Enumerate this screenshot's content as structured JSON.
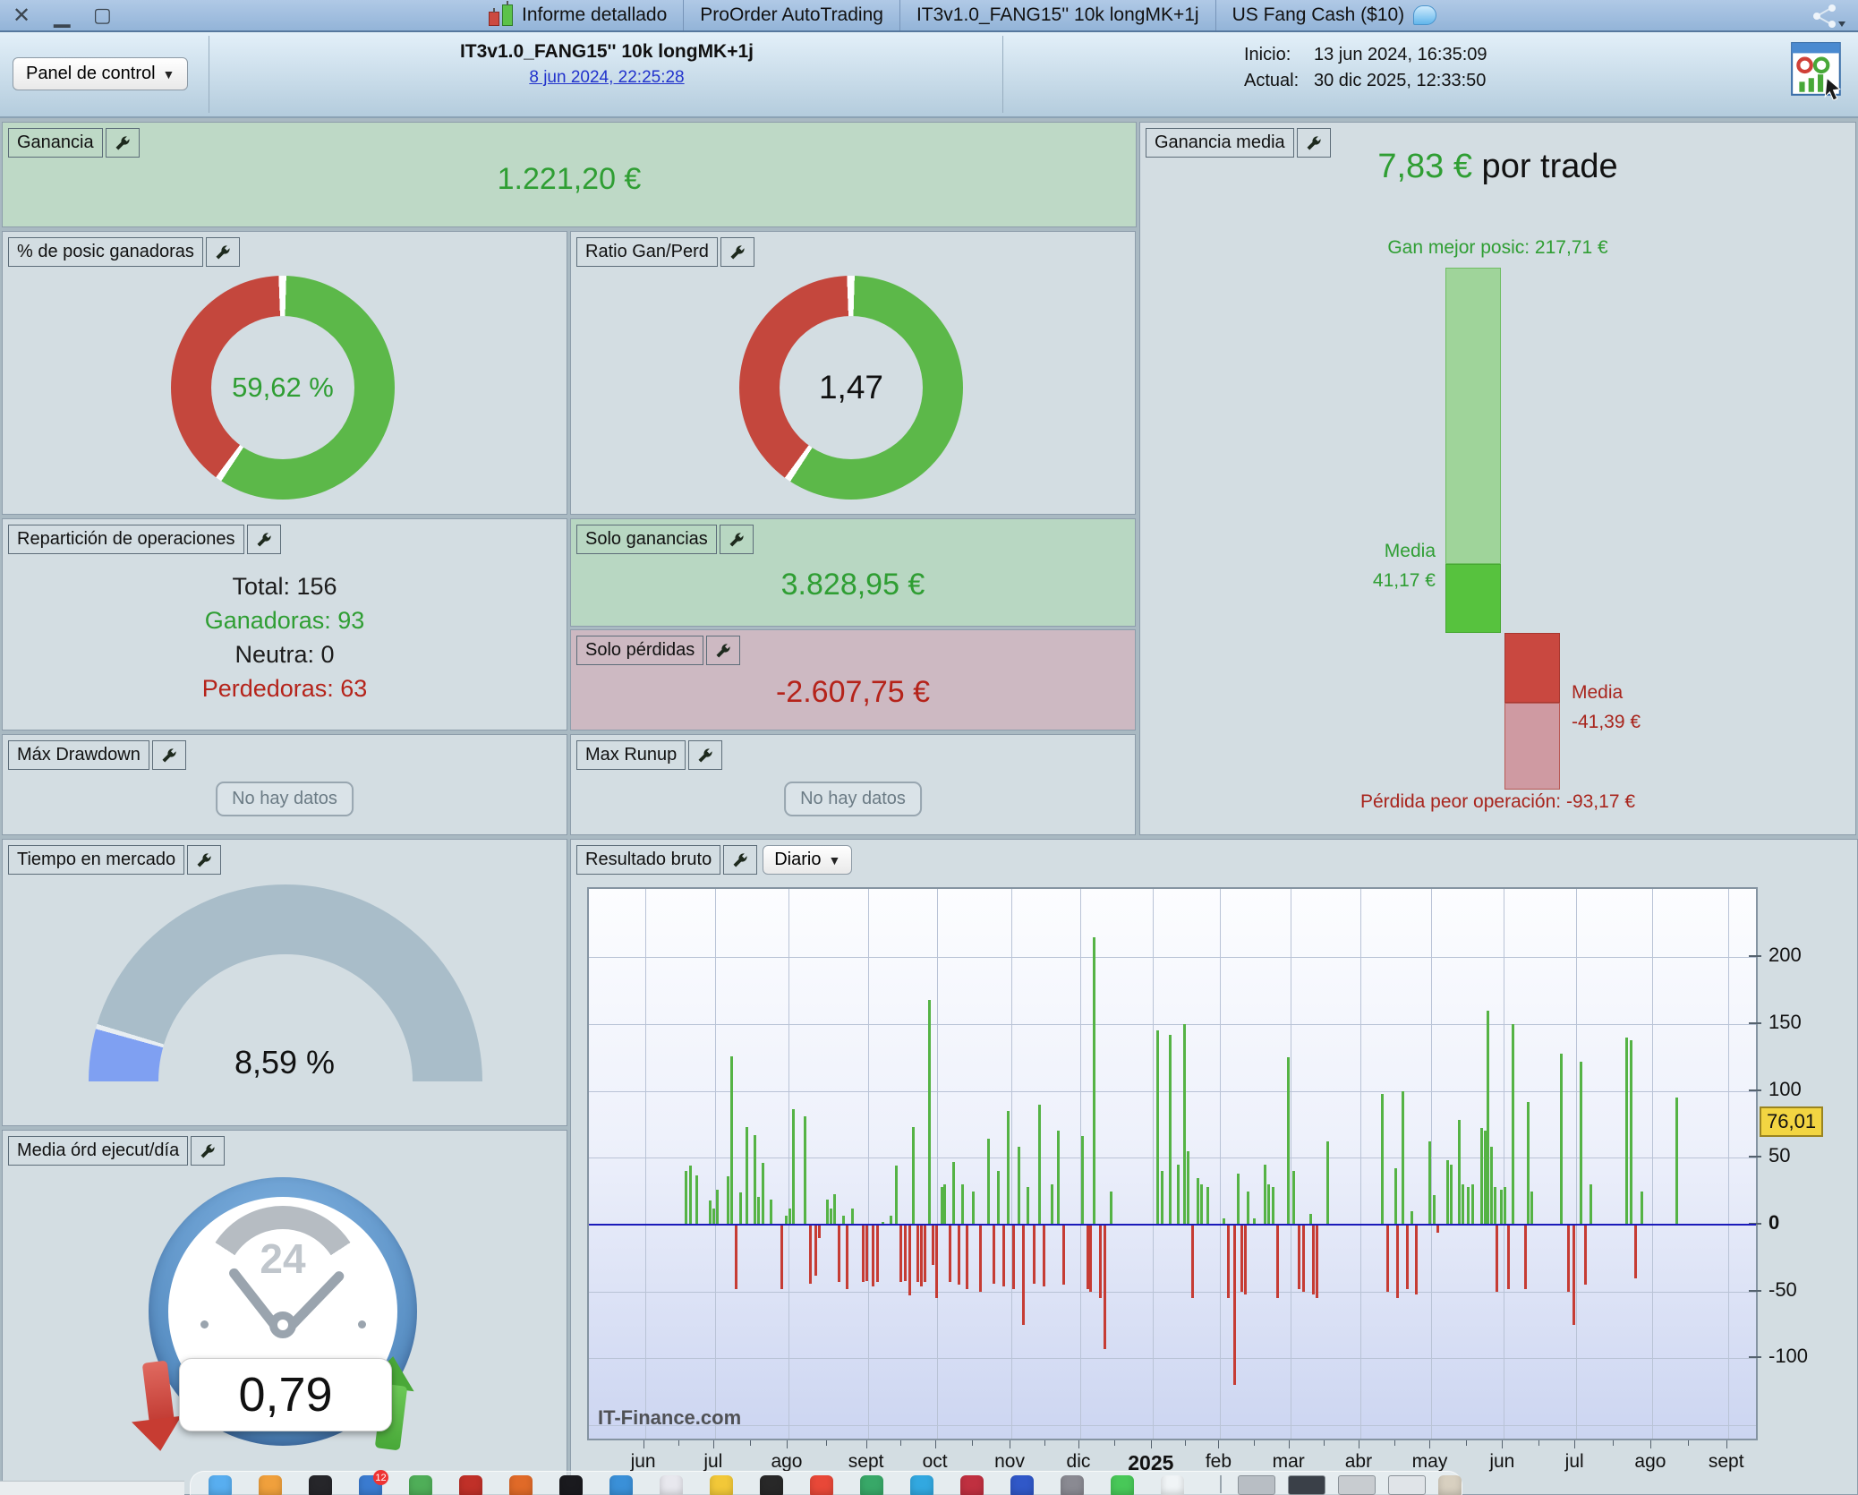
{
  "window": {
    "tabs": [
      "Informe detallado",
      "ProOrder AutoTrading",
      "IT3v1.0_FANG15'' 10k longMK+1j",
      "US Fang Cash ($10)"
    ]
  },
  "toolbar": {
    "panel_button": "Panel de control",
    "strategy_title": "IT3v1.0_FANG15'' 10k longMK+1j",
    "strategy_date_link": "8 jun 2024, 22:25:28",
    "inicio_label": "Inicio:",
    "inicio_value": "13 jun 2024, 16:35:09",
    "actual_label": "Actual:",
    "actual_value": "30 dic 2025, 12:33:50"
  },
  "panels": {
    "ganancia": {
      "label": "Ganancia",
      "value": "1.221,20 €"
    },
    "ganancia_media": {
      "label": "Ganancia media",
      "value": "7,83 €",
      "suffix": " por trade",
      "best_label": "Gan mejor posic: 217,71 €",
      "media_win_label": "Media",
      "media_win_value": "41,17 €",
      "media_loss_label": "Media",
      "media_loss_value": "-41,39 €",
      "worst_label": "Pérdida peor operación: -93,17 €"
    },
    "pct_ganadoras": {
      "label": "% de posic ganadoras",
      "value": "59,62 %"
    },
    "ratio": {
      "label": "Ratio Gan/Perd",
      "value": "1,47"
    },
    "reparticion": {
      "label": "Repartición de operaciones",
      "rows": [
        {
          "text": "Total: 156",
          "color": "#1c1c1c"
        },
        {
          "text": "Ganadoras: 93",
          "color": "#2f9e33"
        },
        {
          "text": "Neutra: 0",
          "color": "#1c1c1c"
        },
        {
          "text": "Perdedoras: 63",
          "color": "#b5231a"
        }
      ]
    },
    "solo_ganancias": {
      "label": "Solo ganancias",
      "value": "3.828,95 €"
    },
    "solo_perdidas": {
      "label": "Solo pérdidas",
      "value": "-2.607,75 €"
    },
    "drawdown": {
      "label": "Máx Drawdown",
      "empty": "No hay datos"
    },
    "runup": {
      "label": "Max Runup",
      "empty": "No hay datos"
    },
    "tiempo": {
      "label": "Tiempo en mercado",
      "value": "8,59 %"
    },
    "media_ord": {
      "label": "Media órd ejecut/día",
      "value": "0,79",
      "clock_text": "24"
    },
    "resultado": {
      "label": "Resultado bruto",
      "period_button": "Diario",
      "watermark": "IT-Finance.com",
      "current_value": "76,01"
    }
  },
  "colors": {
    "win_green": "#5cb849",
    "loss_red": "#c4473d",
    "value_green": "#2f9e33",
    "value_red": "#b5231a",
    "gauge_blue": "#7fa0f2",
    "gauge_gray": "#a9bdc9",
    "bar_pos": "#55b345",
    "bar_neg": "#c63c34",
    "zero_line": "#1b1bba",
    "highlight_yellow": "#f2d542"
  },
  "chart_data": [
    {
      "type": "pie",
      "name": "pct_posiciones_ganadoras",
      "labels": [
        "Ganadoras",
        "Perdedoras"
      ],
      "values": [
        59.62,
        40.38
      ],
      "center_text": "59,62 %"
    },
    {
      "type": "pie",
      "name": "ratio_gan_perd",
      "labels": [
        "Gan",
        "Perd"
      ],
      "values": [
        59.5,
        40.5
      ],
      "center_text": "1,47"
    },
    {
      "type": "bar",
      "name": "ganancia_media_rangos",
      "best": 217.71,
      "avg_win": 41.17,
      "avg_loss": -41.39,
      "worst": -93.17,
      "title": "7,83 € por trade"
    },
    {
      "type": "area",
      "name": "tiempo_en_mercado_gauge",
      "value": 8.59,
      "range": [
        0,
        100
      ]
    },
    {
      "type": "bar",
      "name": "resultado_bruto_diario",
      "title": "Resultado bruto (Diario)",
      "x_months": [
        [
          "jun",
          0.048
        ],
        [
          "jul",
          0.108
        ],
        [
          "ago",
          0.171
        ],
        [
          "sept",
          0.239
        ],
        [
          "oct",
          0.298
        ],
        [
          "nov",
          0.362
        ],
        [
          "dic",
          0.421
        ],
        [
          "2025",
          0.483
        ],
        [
          "feb",
          0.541
        ],
        [
          "mar",
          0.601
        ],
        [
          "abr",
          0.661
        ],
        [
          "may",
          0.722
        ],
        [
          "jun",
          0.784
        ],
        [
          "jul",
          0.846
        ],
        [
          "ago",
          0.911
        ],
        [
          "sept",
          0.976
        ]
      ],
      "bold_month": "2025",
      "y_ticks": [
        200,
        150,
        100,
        50,
        0,
        -50,
        -100
      ],
      "ylim": [
        -160,
        251
      ],
      "grid": true,
      "legend_position": "none",
      "current_value": 76.01,
      "bars": [
        [
          0.082,
          40
        ],
        [
          0.086,
          44
        ],
        [
          0.091,
          37
        ],
        [
          0.103,
          18
        ],
        [
          0.106,
          12
        ],
        [
          0.109,
          26
        ],
        [
          0.118,
          36
        ],
        [
          0.121,
          126
        ],
        [
          0.125,
          -48
        ],
        [
          0.129,
          24
        ],
        [
          0.134,
          73
        ],
        [
          0.141,
          67
        ],
        [
          0.144,
          21
        ],
        [
          0.148,
          46
        ],
        [
          0.155,
          19
        ],
        [
          0.164,
          -48
        ],
        [
          0.168,
          7
        ],
        [
          0.171,
          12
        ],
        [
          0.174,
          86
        ],
        [
          0.184,
          81
        ],
        [
          0.189,
          -44
        ],
        [
          0.193,
          -38
        ],
        [
          0.196,
          -10
        ],
        [
          0.203,
          19
        ],
        [
          0.206,
          12
        ],
        [
          0.209,
          23
        ],
        [
          0.213,
          -43
        ],
        [
          0.217,
          7
        ],
        [
          0.22,
          -48
        ],
        [
          0.225,
          12
        ],
        [
          0.234,
          -43
        ],
        [
          0.237,
          -42
        ],
        [
          0.242,
          -46
        ],
        [
          0.246,
          -43
        ],
        [
          0.251,
          2
        ],
        [
          0.258,
          7
        ],
        [
          0.262,
          44
        ],
        [
          0.266,
          -43
        ],
        [
          0.27,
          -42
        ],
        [
          0.274,
          -53
        ],
        [
          0.277,
          73
        ],
        [
          0.281,
          -43
        ],
        [
          0.284,
          -46
        ],
        [
          0.287,
          -43
        ],
        [
          0.291,
          168
        ],
        [
          0.294,
          -30
        ],
        [
          0.297,
          -55
        ],
        [
          0.301,
          28
        ],
        [
          0.304,
          30
        ],
        [
          0.308,
          -43
        ],
        [
          0.311,
          47
        ],
        [
          0.316,
          -45
        ],
        [
          0.319,
          30
        ],
        [
          0.323,
          -48
        ],
        [
          0.328,
          25
        ],
        [
          0.334,
          -50
        ],
        [
          0.341,
          64
        ],
        [
          0.346,
          -44
        ],
        [
          0.35,
          40
        ],
        [
          0.354,
          -46
        ],
        [
          0.358,
          85
        ],
        [
          0.363,
          -48
        ],
        [
          0.367,
          58
        ],
        [
          0.371,
          -75
        ],
        [
          0.375,
          28
        ],
        [
          0.38,
          -44
        ],
        [
          0.385,
          90
        ],
        [
          0.389,
          -46
        ],
        [
          0.396,
          30
        ],
        [
          0.401,
          70
        ],
        [
          0.406,
          -45
        ],
        [
          0.422,
          66
        ],
        [
          0.426,
          -48
        ],
        [
          0.429,
          -50
        ],
        [
          0.432,
          215
        ],
        [
          0.437,
          -55
        ],
        [
          0.441,
          -93
        ],
        [
          0.446,
          25
        ],
        [
          0.486,
          145
        ],
        [
          0.49,
          40
        ],
        [
          0.497,
          142
        ],
        [
          0.504,
          45
        ],
        [
          0.509,
          150
        ],
        [
          0.512,
          55
        ],
        [
          0.516,
          -55
        ],
        [
          0.521,
          35
        ],
        [
          0.524,
          30
        ],
        [
          0.529,
          28
        ],
        [
          0.543,
          5
        ],
        [
          0.547,
          -55
        ],
        [
          0.552,
          -120
        ],
        [
          0.555,
          38
        ],
        [
          0.558,
          -50
        ],
        [
          0.561,
          -52
        ],
        [
          0.564,
          25
        ],
        [
          0.569,
          5
        ],
        [
          0.578,
          45
        ],
        [
          0.581,
          30
        ],
        [
          0.585,
          28
        ],
        [
          0.589,
          -55
        ],
        [
          0.598,
          125
        ],
        [
          0.603,
          40
        ],
        [
          0.607,
          -48
        ],
        [
          0.611,
          -50
        ],
        [
          0.617,
          8
        ],
        [
          0.62,
          -52
        ],
        [
          0.623,
          -55
        ],
        [
          0.632,
          62
        ],
        [
          0.679,
          98
        ],
        [
          0.683,
          -50
        ],
        [
          0.69,
          42
        ],
        [
          0.692,
          -55
        ],
        [
          0.696,
          100
        ],
        [
          0.7,
          -48
        ],
        [
          0.704,
          10
        ],
        [
          0.708,
          -52
        ],
        [
          0.719,
          62
        ],
        [
          0.723,
          22
        ],
        [
          0.726,
          -6
        ],
        [
          0.735,
          48
        ],
        [
          0.738,
          45
        ],
        [
          0.745,
          78
        ],
        [
          0.748,
          30
        ],
        [
          0.752,
          28
        ],
        [
          0.756,
          30
        ],
        [
          0.764,
          72
        ],
        [
          0.767,
          70
        ],
        [
          0.769,
          160
        ],
        [
          0.772,
          58
        ],
        [
          0.775,
          28
        ],
        [
          0.777,
          -50
        ],
        [
          0.781,
          26
        ],
        [
          0.784,
          28
        ],
        [
          0.787,
          -48
        ],
        [
          0.791,
          150
        ],
        [
          0.801,
          -48
        ],
        [
          0.804,
          92
        ],
        [
          0.807,
          25
        ],
        [
          0.832,
          128
        ],
        [
          0.838,
          -50
        ],
        [
          0.843,
          -75
        ],
        [
          0.849,
          122
        ],
        [
          0.853,
          -45
        ],
        [
          0.857,
          30
        ],
        [
          0.888,
          140
        ],
        [
          0.892,
          138
        ],
        [
          0.896,
          -40
        ],
        [
          0.901,
          25
        ],
        [
          0.931,
          95
        ]
      ]
    }
  ],
  "dock": {
    "badge": "12",
    "items": [
      {
        "name": "dock-app-finder",
        "color": "#58aef0"
      },
      {
        "name": "dock-app-launchpad",
        "color": "#f0a03c"
      },
      {
        "name": "dock-app-spiral",
        "color": "#26262a"
      },
      {
        "name": "dock-app-browser",
        "color": "#3a7bd0",
        "badge": true
      },
      {
        "name": "dock-app-books",
        "color": "#4fae58"
      },
      {
        "name": "dock-app-zip",
        "color": "#c03028"
      },
      {
        "name": "dock-app-flame",
        "color": "#e06a28"
      },
      {
        "name": "dock-app-camera",
        "color": "#1a1a1e"
      },
      {
        "name": "dock-app-pages",
        "color": "#3a90d8"
      },
      {
        "name": "dock-app-gauge",
        "color": "#e8e8ee"
      },
      {
        "name": "dock-app-yellow",
        "color": "#f2c838"
      },
      {
        "name": "dock-app-terminal",
        "color": "#282828"
      },
      {
        "name": "dock-app-chrome",
        "color": "#e84838"
      },
      {
        "name": "dock-app-maps",
        "color": "#38a868"
      },
      {
        "name": "dock-app-telegram",
        "color": "#32a8e0"
      },
      {
        "name": "dock-app-pin",
        "color": "#c03040"
      },
      {
        "name": "dock-app-blue",
        "color": "#3058c8"
      },
      {
        "name": "dock-app-cube",
        "color": "#8a8a92"
      },
      {
        "name": "dock-app-whatsapp",
        "color": "#48c858"
      },
      {
        "name": "dock-app-trading",
        "color": "#f0f4f6"
      },
      {
        "name": "dock-separator",
        "color": "#9aa6ae",
        "sep": true
      },
      {
        "name": "dock-window-thumb",
        "color": "#b8bec4",
        "thumb": true
      },
      {
        "name": "dock-window-thumb",
        "color": "#3a4048",
        "thumb": true
      },
      {
        "name": "dock-window-thumb",
        "color": "#c8ccd0",
        "thumb": true
      },
      {
        "name": "dock-window-thumb",
        "color": "#e0e4e8",
        "thumb": true
      },
      {
        "name": "dock-app-pencils",
        "color": "#d8d0c0"
      }
    ]
  }
}
